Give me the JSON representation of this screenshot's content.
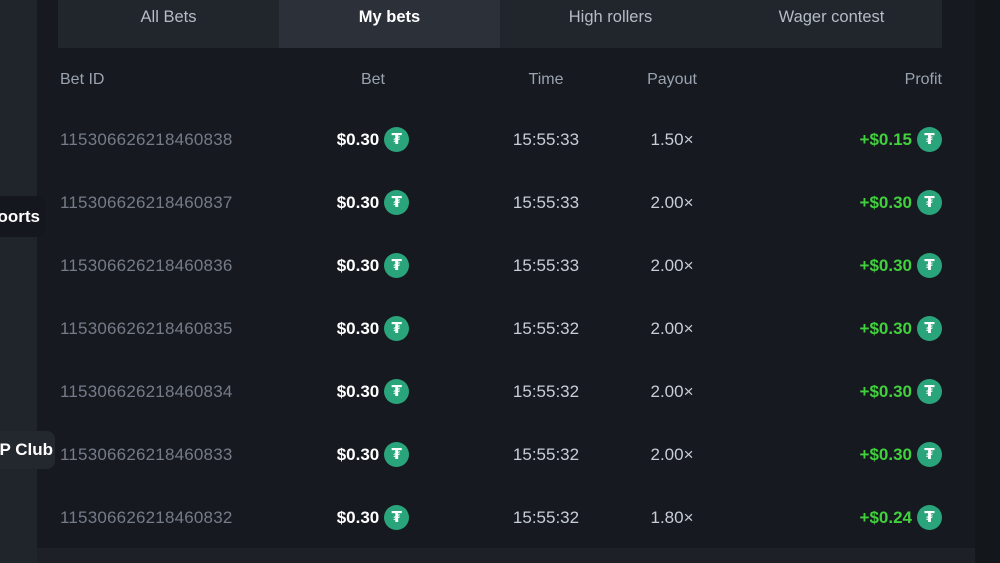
{
  "colors": {
    "page_bg": "#16191f",
    "sidebar_strip_bg": "#20242b",
    "right_strip_bg": "#13161b",
    "bottom_strip_bg": "#1d2127",
    "tabbar_bg": "#21252c",
    "active_tab_bg": "#2b3039",
    "tab_text": "#b5bcc6",
    "active_tab_text": "#ffffff",
    "header_text": "#9aa3b0",
    "bet_id_text": "#757c88",
    "muted_value_text": "#c7ced8",
    "bet_value_text": "#ffffff",
    "profit_text": "#40d13c",
    "tether_green": "#2aa47b",
    "tooltip_sports_bg": "#14171d",
    "tooltip_vip_bg": "#23272e"
  },
  "tabs": [
    {
      "label": "All Bets",
      "active": false
    },
    {
      "label": "My bets",
      "active": true
    },
    {
      "label": "High rollers",
      "active": false
    },
    {
      "label": "Wager contest",
      "active": false
    }
  ],
  "sidebar_labels": [
    {
      "label": "oorts"
    },
    {
      "label": "P Club"
    }
  ],
  "currency": {
    "name": "tether",
    "symbol": "₮"
  },
  "table": {
    "headers": [
      "Bet ID",
      "Bet",
      "Time",
      "Payout",
      "Profit"
    ],
    "rows": [
      {
        "id": "115306626218460838",
        "bet": "$0.30",
        "time": "15:55:33",
        "payout": "1.50×",
        "profit": "+$0.15"
      },
      {
        "id": "115306626218460837",
        "bet": "$0.30",
        "time": "15:55:33",
        "payout": "2.00×",
        "profit": "+$0.30"
      },
      {
        "id": "115306626218460836",
        "bet": "$0.30",
        "time": "15:55:33",
        "payout": "2.00×",
        "profit": "+$0.30"
      },
      {
        "id": "115306626218460835",
        "bet": "$0.30",
        "time": "15:55:32",
        "payout": "2.00×",
        "profit": "+$0.30"
      },
      {
        "id": "115306626218460834",
        "bet": "$0.30",
        "time": "15:55:32",
        "payout": "2.00×",
        "profit": "+$0.30"
      },
      {
        "id": "115306626218460833",
        "bet": "$0.30",
        "time": "15:55:32",
        "payout": "2.00×",
        "profit": "+$0.30"
      },
      {
        "id": "115306626218460832",
        "bet": "$0.30",
        "time": "15:55:32",
        "payout": "1.80×",
        "profit": "+$0.24"
      }
    ]
  }
}
